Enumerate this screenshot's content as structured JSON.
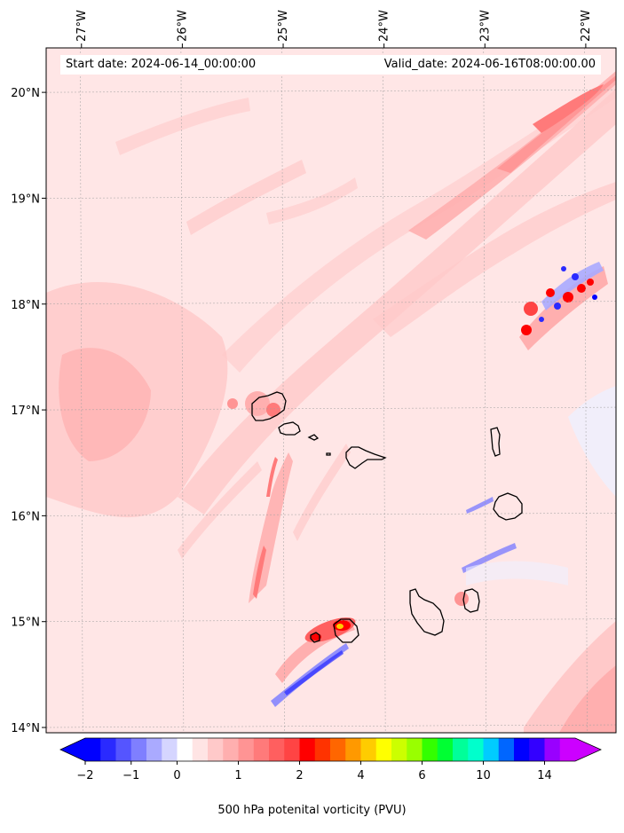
{
  "header": {
    "start_date": "Start date: 2024-06-14_00:00:00",
    "valid_date": "Valid_date: 2024-06-16T08:00:00.00"
  },
  "map": {
    "region": "Cape Verde islands",
    "lon_ticks": [
      "27°W",
      "26°W",
      "25°W",
      "24°W",
      "23°W",
      "22°W"
    ],
    "lat_ticks": [
      "20°N",
      "19°N",
      "18°N",
      "17°N",
      "16°N",
      "15°N",
      "14°N"
    ],
    "lon_range": [
      -27.35,
      -21.7
    ],
    "lat_range": [
      13.95,
      20.42
    ],
    "grid": true,
    "coastlines": true
  },
  "colorbar": {
    "title": "500 hPa potenital vorticity (PVU)",
    "tick_labels": [
      "−2",
      "−1",
      "0",
      "1",
      "2",
      "4",
      "6",
      "10",
      "14"
    ],
    "extend": "both",
    "colors": [
      "#0000ff",
      "#2a2aff",
      "#5555ff",
      "#7f7fff",
      "#aaaaff",
      "#d5d5ff",
      "#ffffff",
      "#ffe4e4",
      "#ffc9c9",
      "#ffafaf",
      "#ff9494",
      "#ff7a7a",
      "#ff5f5f",
      "#ff4444",
      "#ff0000",
      "#ff3300",
      "#ff6600",
      "#ff9900",
      "#ffcc00",
      "#ffff00",
      "#ccff00",
      "#99ff00",
      "#33ff00",
      "#00ff33",
      "#00ff99",
      "#00ffcc",
      "#00ccff",
      "#0066ff",
      "#0000ff",
      "#3300ff",
      "#9900ff",
      "#cc00ff"
    ],
    "under_color": "#0000ff",
    "over_color": "#cc00ff"
  }
}
